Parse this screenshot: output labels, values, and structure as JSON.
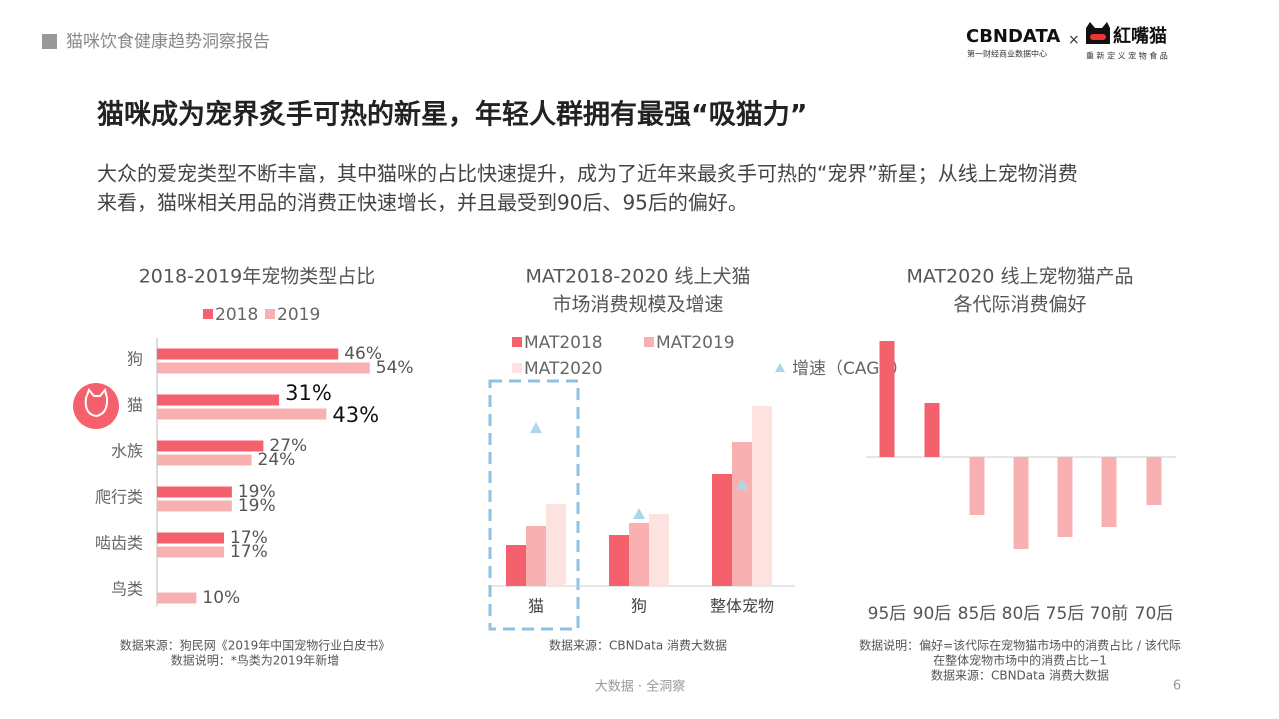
{
  "header": {
    "report_title": "猫咪饮食健康趋势洞察报告",
    "brand": "CBNDATA",
    "brand_sub": "第一财经商业数据中心",
    "times": "×",
    "partner": "紅嘴猫",
    "partner_sub": "重 新 定 义 宠 物 食 品"
  },
  "headline": "猫咪成为宠界炙手可热的新星，年轻人群拥有最强“吸猫力”",
  "intro": [
    "大众的爱宠类型不断丰富，其中猫咪的占比快速提升，成为了近年来最炙手可热的“宠界”新星；从线上宠物消费",
    "来看，猫咪相关用品的消费正快速增长，并且最受到90后、95后的偏好。"
  ],
  "chart_data": [
    {
      "type": "hbar",
      "title": "2018-2019年宠物类型占比",
      "categories": [
        "狗",
        "猫",
        "水族",
        "爬行类",
        "啮齿类",
        "鸟类"
      ],
      "series": [
        {
          "name": "2018",
          "color": "#f4606c",
          "values": [
            46,
            31,
            27,
            19,
            17,
            null
          ],
          "value_labels": [
            "46%",
            "31%",
            "27%",
            "19%",
            "17%",
            null
          ]
        },
        {
          "name": "2019",
          "color": "#f9b0b0",
          "values": [
            54,
            43,
            24,
            19,
            17,
            10
          ],
          "value_labels": [
            "54%",
            "43%",
            "24%",
            "19%",
            "17%",
            "10%"
          ]
        }
      ],
      "notes": [
        "数据来源：狗民网《2019年中国宠物行业白皮书》",
        "数据说明：*鸟类为2019年新增"
      ]
    },
    {
      "type": "bar",
      "title": [
        "MAT2018-2020 线上犬猫",
        "市场消费规模及增速"
      ],
      "categories": [
        "猫",
        "狗",
        "整体宠物"
      ],
      "series": [
        {
          "name": "MAT2018",
          "color": "#f4606c",
          "values": [
            41,
            51,
            112
          ]
        },
        {
          "name": "MAT2019",
          "color": "#f9b0b0",
          "values": [
            60,
            63,
            144
          ]
        },
        {
          "name": "MAT2020",
          "color": "#fde3e0",
          "values": [
            82,
            72,
            180
          ]
        },
        {
          "name": "增速（CAGR）",
          "color": "#a8d8ea",
          "marker": "triangle",
          "values": [
            158,
            72,
            101
          ]
        }
      ],
      "notes": [
        "数据来源：CBNData 消费大数据"
      ]
    },
    {
      "type": "bar",
      "title": [
        "MAT2020 线上宠物猫产品",
        "各代际消费偏好"
      ],
      "categories": [
        "95后",
        "90后",
        "85后",
        "80后",
        "75后",
        "70前",
        "70后"
      ],
      "values": [
        0.58,
        0.27,
        -0.29,
        -0.46,
        -0.4,
        -0.35,
        -0.24
      ],
      "positive_color": "#f4606c",
      "negative_color": "#f9b0b0",
      "notes": [
        "数据说明：偏好=该代际在宠物猫市场中的消费占比 / 该代际",
        "在整体宠物市场中的消费占比−1",
        "数据来源：CBNData 消费大数据"
      ]
    }
  ],
  "footer": {
    "center": "大数据 · 全洞察",
    "page": "6"
  }
}
